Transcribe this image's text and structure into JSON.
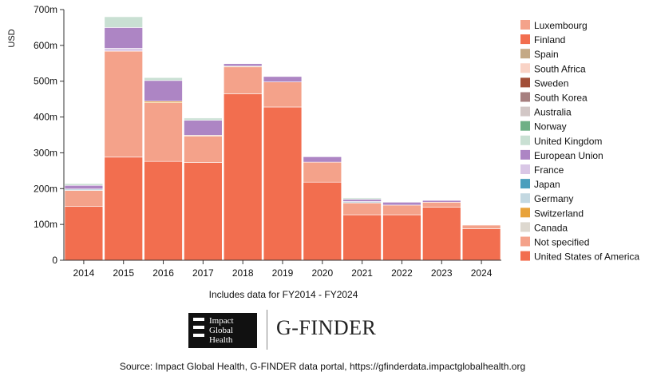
{
  "chart_data": {
    "type": "bar",
    "stacked": true,
    "ylabel": "USD",
    "ylim": [
      0,
      700
    ],
    "yticks": [
      0,
      100,
      200,
      300,
      400,
      500,
      600,
      700
    ],
    "ytick_labels": [
      "0",
      "100m",
      "200m",
      "300m",
      "400m",
      "500m",
      "600m",
      "700m"
    ],
    "categories": [
      "2014",
      "2015",
      "2016",
      "2017",
      "2018",
      "2019",
      "2020",
      "2021",
      "2022",
      "2023",
      "2024"
    ],
    "legend_position": "right",
    "series": [
      {
        "name": "United States of America",
        "color": "#f26e4f",
        "values": [
          150,
          288,
          276,
          273,
          465,
          428,
          218,
          127,
          127,
          148,
          88
        ]
      },
      {
        "name": "Not specified",
        "color": "#f4a28a",
        "values": [
          45,
          296,
          164,
          74,
          75,
          70,
          56,
          33,
          27,
          14,
          10
        ]
      },
      {
        "name": "Canada",
        "color": "#ddd8cf",
        "values": [
          0,
          0,
          0,
          0,
          0,
          0,
          0,
          0,
          0,
          0,
          0
        ]
      },
      {
        "name": "Switzerland",
        "color": "#e8a33b",
        "values": [
          0,
          0,
          4,
          2,
          2,
          0,
          0,
          0,
          0,
          0,
          0
        ]
      },
      {
        "name": "Germany",
        "color": "#c3d8e1",
        "values": [
          4,
          0,
          0,
          0,
          0,
          0,
          0,
          4,
          0,
          0,
          0
        ]
      },
      {
        "name": "Japan",
        "color": "#4b9fbd",
        "values": [
          0,
          0,
          0,
          0,
          0,
          0,
          0,
          0,
          0,
          0,
          0
        ]
      },
      {
        "name": "France",
        "color": "#d9c7e6",
        "values": [
          0,
          8,
          0,
          0,
          0,
          0,
          0,
          0,
          0,
          0,
          0
        ]
      },
      {
        "name": "European Union",
        "color": "#ad85c4",
        "values": [
          10,
          58,
          58,
          42,
          7,
          15,
          15,
          6,
          8,
          5,
          0
        ]
      },
      {
        "name": "United Kingdom",
        "color": "#c9e0d3",
        "values": [
          5,
          30,
          8,
          6,
          0,
          0,
          0,
          4,
          0,
          0,
          0
        ]
      },
      {
        "name": "Norway",
        "color": "#6fb086",
        "values": [
          0,
          0,
          0,
          0,
          0,
          0,
          0,
          0,
          0,
          0,
          0
        ]
      },
      {
        "name": "Australia",
        "color": "#d2c7c6",
        "values": [
          0,
          0,
          0,
          0,
          0,
          0,
          0,
          0,
          0,
          0,
          0
        ]
      },
      {
        "name": "South Korea",
        "color": "#a67f7f",
        "values": [
          0,
          0,
          0,
          0,
          0,
          0,
          0,
          0,
          0,
          0,
          0
        ]
      },
      {
        "name": "Sweden",
        "color": "#a24f38",
        "values": [
          0,
          0,
          0,
          0,
          0,
          0,
          0,
          0,
          0,
          0,
          0
        ]
      },
      {
        "name": "South Africa",
        "color": "#f9d3c6",
        "values": [
          0,
          0,
          0,
          0,
          0,
          0,
          0,
          0,
          0,
          0,
          0
        ]
      },
      {
        "name": "Spain",
        "color": "#c4a985",
        "values": [
          0,
          0,
          0,
          0,
          0,
          0,
          0,
          0,
          0,
          0,
          0
        ]
      },
      {
        "name": "Finland",
        "color": "#f26e4f",
        "values": [
          0,
          0,
          0,
          0,
          0,
          0,
          0,
          0,
          0,
          0,
          0
        ]
      },
      {
        "name": "Luxembourg",
        "color": "#f4a28a",
        "values": [
          0,
          0,
          0,
          0,
          0,
          0,
          0,
          0,
          0,
          0,
          0
        ]
      }
    ],
    "legend_order": [
      "Luxembourg",
      "Finland",
      "Spain",
      "South Africa",
      "Sweden",
      "South Korea",
      "Australia",
      "Norway",
      "United Kingdom",
      "European Union",
      "France",
      "Japan",
      "Germany",
      "Switzerland",
      "Canada",
      "Not specified",
      "United States of America"
    ]
  },
  "note": "Includes data for FY2014 - FY2024",
  "logo": {
    "line1": "Impact",
    "line2": "Global",
    "line3": "Health"
  },
  "brand": "G-FINDER",
  "source": "Source: Impact Global Health, G-FINDER data portal, https://gfinderdata.impactglobalhealth.org"
}
